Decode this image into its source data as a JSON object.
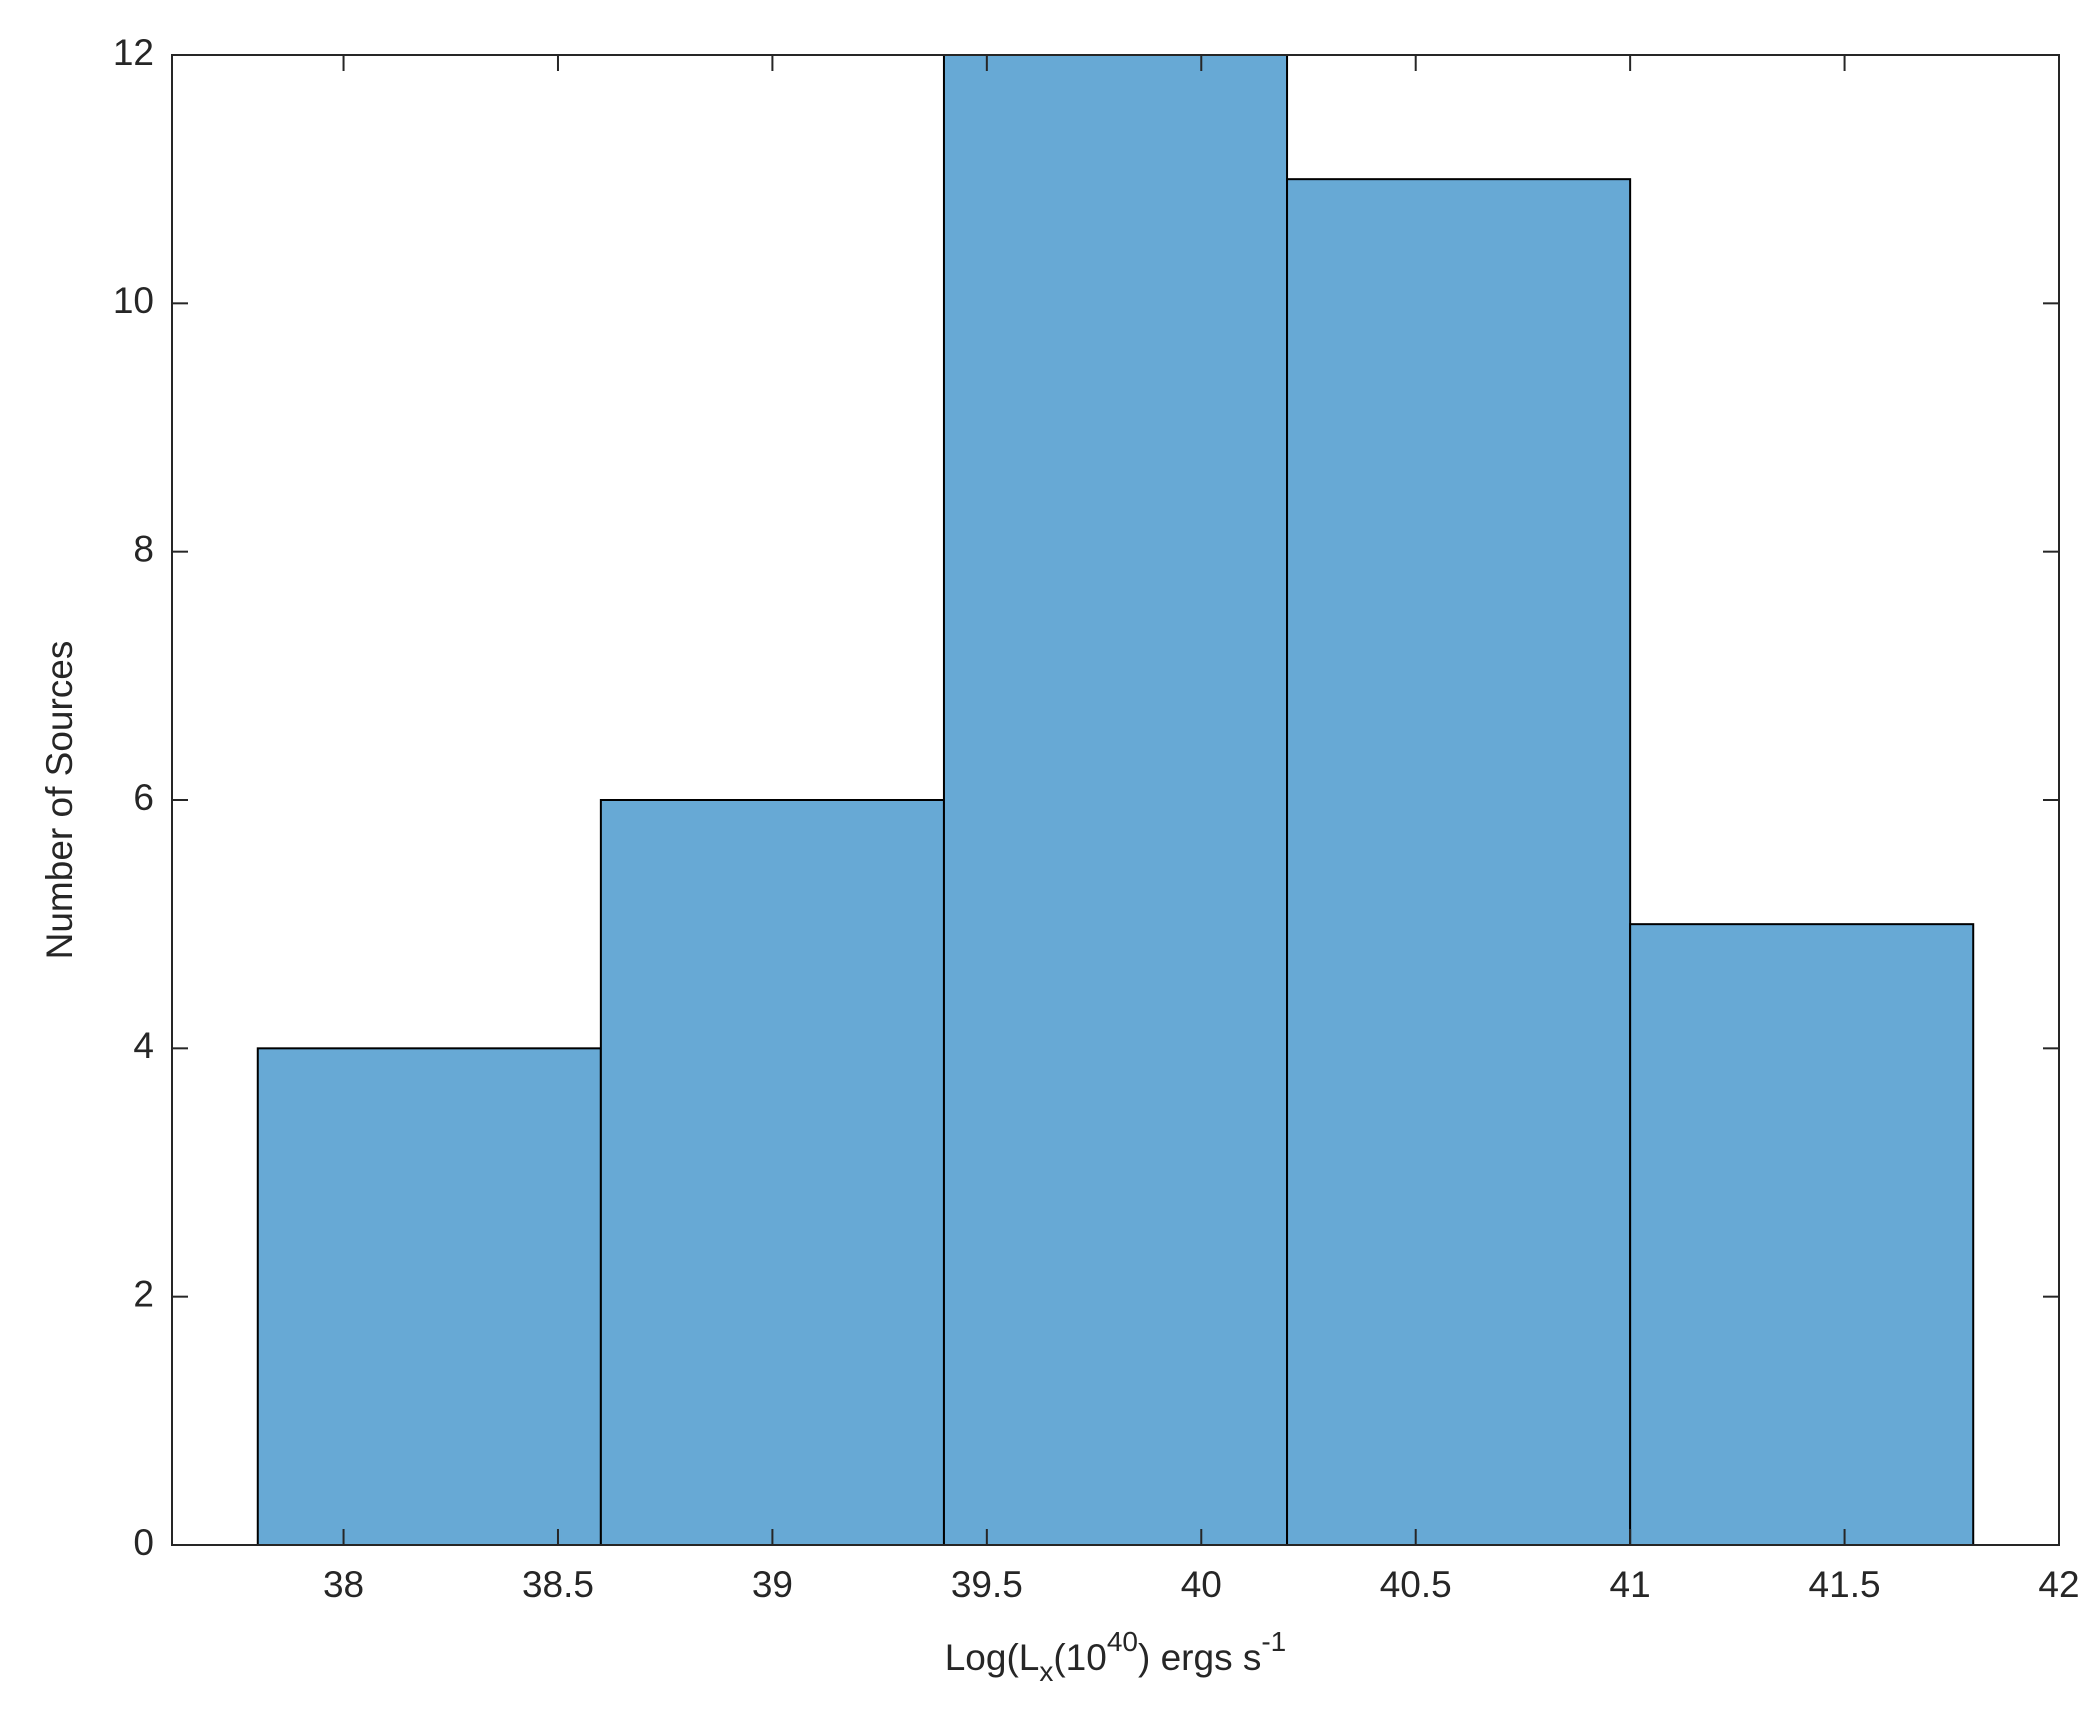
{
  "chart_data": {
    "type": "histogram",
    "bins": [
      37.8,
      38.6,
      39.4,
      40.2,
      41.0,
      41.8
    ],
    "counts": [
      4,
      6,
      12,
      11,
      5
    ],
    "color": "#67a9d5",
    "edge_color": "#000000",
    "xlim": [
      37.6,
      42
    ],
    "xticks": [
      38,
      38.5,
      39,
      39.5,
      40,
      40.5,
      41,
      41.5,
      42
    ],
    "ylim": [
      0,
      12
    ],
    "yticks": [
      0,
      2,
      4,
      6,
      8,
      10,
      12
    ],
    "xlabel": [
      "Log(L",
      "x",
      "(10",
      "40",
      ") ergs s",
      "-1"
    ],
    "ylabel": "Number of Sources",
    "grid": false
  }
}
